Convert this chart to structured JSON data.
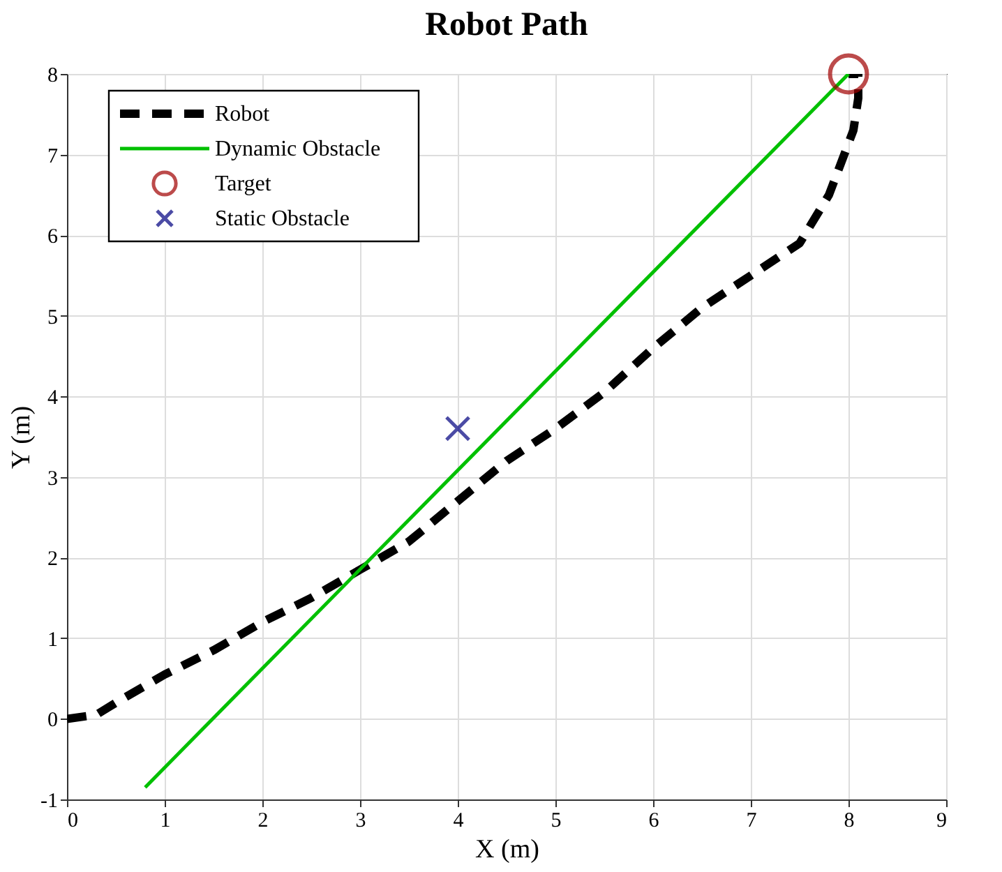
{
  "chart_data": {
    "type": "line",
    "title": "Robot Path",
    "xlabel": "X (m)",
    "ylabel": "Y (m)",
    "xlim": [
      0,
      9
    ],
    "xticks": [
      0,
      1,
      2,
      3,
      4,
      5,
      6,
      7,
      8,
      9
    ],
    "ylim": [
      -1,
      8
    ],
    "yticks": [
      -1,
      0,
      1,
      2,
      3,
      4,
      5,
      6,
      7,
      8
    ],
    "grid": true,
    "legend": "top left",
    "series": [
      {
        "name": "Robot",
        "line_style": "dashed",
        "color": "#000000",
        "x": [
          0,
          0.3,
          0.5,
          1,
          1.5,
          2,
          2.5,
          3,
          3.5,
          4,
          4.5,
          5,
          5.5,
          6,
          6.5,
          7,
          7.5,
          7.8,
          8.05,
          8.1,
          8.1,
          8.0
        ],
        "values": [
          0,
          0.05,
          0.2,
          0.55,
          0.85,
          1.2,
          1.5,
          1.85,
          2.2,
          2.7,
          3.2,
          3.6,
          4.05,
          4.6,
          5.1,
          5.5,
          5.9,
          6.5,
          7.3,
          7.7,
          8.0,
          8.0
        ]
      },
      {
        "name": "Dynamic Obstacle",
        "line_style": "solid",
        "color": "#00c000",
        "x": [
          0.8,
          8
        ],
        "values": [
          -0.85,
          8
        ]
      },
      {
        "name": "Target",
        "type": "scatter",
        "marker": "circle",
        "color": "#a00000",
        "x": [
          8
        ],
        "values": [
          8
        ]
      },
      {
        "name": "Static Obstacle",
        "type": "scatter",
        "marker": "cross",
        "color": "#000080",
        "x": [
          4
        ],
        "values": [
          3.6
        ]
      }
    ]
  }
}
